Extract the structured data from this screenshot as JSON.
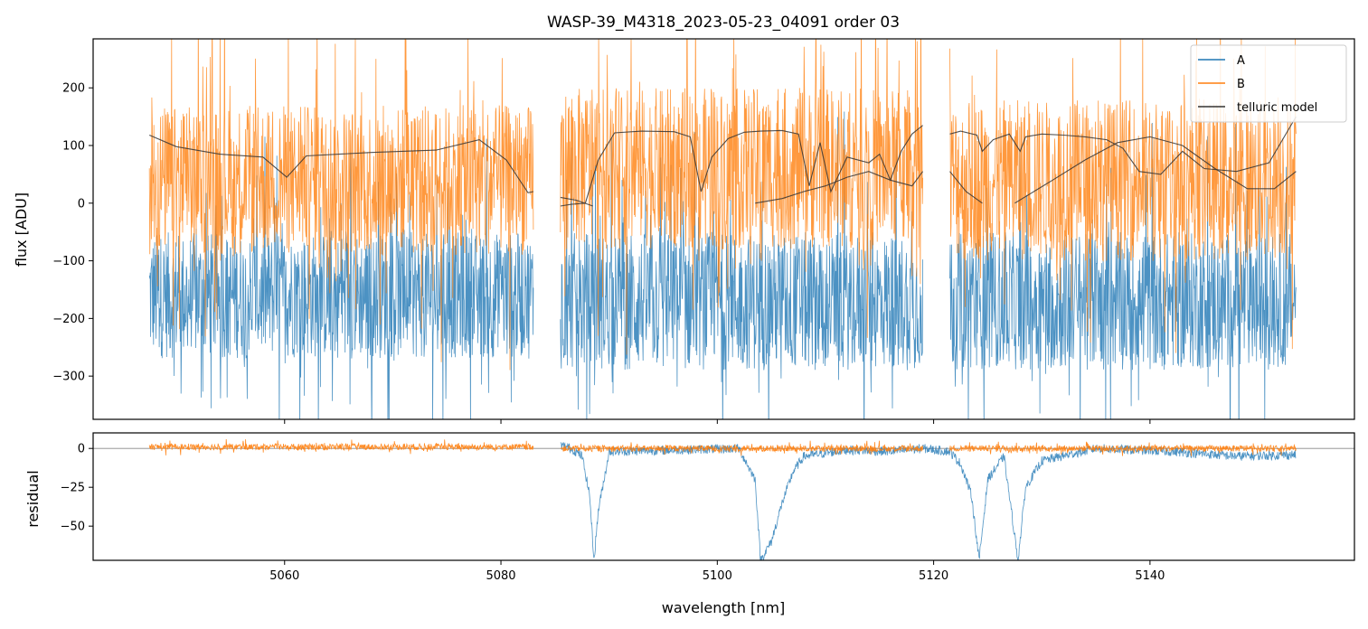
{
  "chart_data": {
    "type": "line",
    "title": "WASP-39_M4318_2023-05-23_04091  order 03",
    "xlabel": "wavelength [nm]",
    "xlim": [
      5042.3,
      5158.9
    ],
    "xticks": [
      5060,
      5080,
      5100,
      5120,
      5140
    ],
    "xtick_labels": [
      "5060",
      "5080",
      "5100",
      "5120",
      "5140"
    ],
    "panels": [
      {
        "name": "flux",
        "ylabel": "flux [ADU]",
        "ylim": [
          -375,
          285
        ],
        "yticks": [
          -300,
          -200,
          -100,
          0,
          100,
          200
        ],
        "ytick_labels": [
          "−300",
          "−200",
          "−100",
          "0",
          "100",
          "200"
        ],
        "legend_position": "top-right",
        "series": [
          {
            "name": "A",
            "color": "#1f77b4",
            "segments": [
              {
                "x": [
                  5047.5,
                  5060,
                  5060.4,
                  5083
                ],
                "center": -160,
                "spread": 110
              },
              {
                "x": [
                  5085.5,
                  5088,
                  5091,
                  5097,
                  5101,
                  5104,
                  5107,
                  5111,
                  5114,
                  5119
                ],
                "center": -170,
                "spread": 120
              },
              {
                "x": [
                  5121.5,
                  5126,
                  5131,
                  5136,
                  5139,
                  5142,
                  5145,
                  5150,
                  5153.5
                ],
                "center": -170,
                "spread": 120
              }
            ],
            "note": "dense noisy spectrum; upper excursions near 5104-5110 and 5136-5146"
          },
          {
            "name": "B",
            "color": "#ff7f0e",
            "segments": [
              {
                "x": [
                  5047.5,
                  5083
                ],
                "center": 40,
                "spread": 130
              },
              {
                "x": [
                  5085.5,
                  5119
                ],
                "center": 60,
                "spread": 140
              },
              {
                "x": [
                  5121.5,
                  5153.5
                ],
                "center": 40,
                "spread": 140
              }
            ],
            "note": "dense noisy spectrum; deep dips near 5113-5116 and 5136-5142"
          },
          {
            "name": "telluric model",
            "color": "#333333",
            "segments": [
              {
                "x": [
                  5047.5,
                  5050,
                  5054,
                  5058,
                  5060.2,
                  5062,
                  5068,
                  5074,
                  5078,
                  5080.5,
                  5082.5,
                  5083
                ],
                "y": [
                  118,
                  98,
                  85,
                  80,
                  45,
                  82,
                  88,
                  92,
                  110,
                  75,
                  18,
                  20
                ]
              },
              {
                "x": [
                  5085.5,
                  5086.5,
                  5087.8,
                  5089,
                  5090.5,
                  5093,
                  5096,
                  5097.5,
                  5098.5,
                  5099.5,
                  5101,
                  5102.5,
                  5104,
                  5106,
                  5107.5,
                  5108.5,
                  5109.5,
                  5110.5,
                  5112,
                  5114,
                  5115,
                  5116,
                  5117,
                  5118,
                  5119
                ],
                "y": [
                  -5,
                  -2,
                  0,
                  75,
                  122,
                  125,
                  124,
                  115,
                  20,
                  80,
                  112,
                  123,
                  125,
                  126,
                  120,
                  30,
                  105,
                  20,
                  80,
                  70,
                  85,
                  40,
                  90,
                  120,
                  135
                ]
              },
              {
                "x": [
                  5085.5,
                  5087,
                  5088.5
                ],
                "y": [
                  10,
                  5,
                  -5
                ]
              },
              {
                "x": [
                  5103.5,
                  5106,
                  5108,
                  5110,
                  5112,
                  5114,
                  5116,
                  5118,
                  5119
                ],
                "y": [
                  0,
                  8,
                  20,
                  30,
                  45,
                  55,
                  40,
                  30,
                  55
                ]
              },
              {
                "x": [
                  5121.5,
                  5122.5,
                  5124,
                  5124.5,
                  5125.5,
                  5127,
                  5128,
                  5128.5,
                  5130,
                  5132,
                  5134,
                  5136,
                  5137.5,
                  5139,
                  5141,
                  5143,
                  5145,
                  5148,
                  5151,
                  5153.5
                ],
                "y": [
                  120,
                  125,
                  118,
                  90,
                  110,
                  120,
                  90,
                  115,
                  120,
                  118,
                  115,
                  110,
                  95,
                  55,
                  50,
                  90,
                  60,
                  55,
                  70,
                  150
                ]
              },
              {
                "x": [
                  5121.5,
                  5123,
                  5124.5
                ],
                "y": [
                  55,
                  20,
                  0
                ]
              },
              {
                "x": [
                  5127.5,
                  5131,
                  5134,
                  5137,
                  5140,
                  5143,
                  5146,
                  5149,
                  5151.5,
                  5153.5
                ],
                "y": [
                  0,
                  40,
                  75,
                  105,
                  115,
                  100,
                  60,
                  25,
                  25,
                  55
                ]
              }
            ]
          }
        ]
      },
      {
        "name": "residual",
        "ylabel": "residual",
        "ylim": [
          -72,
          10
        ],
        "yticks": [
          -50,
          -25,
          0
        ],
        "ytick_labels": [
          "−50",
          "−25",
          "0"
        ],
        "hline": 0,
        "series": [
          {
            "name": "A",
            "color": "#1f77b4",
            "points": [
              {
                "x": 5085.5,
                "y": 2
              },
              {
                "x": 5086.5,
                "y": 0
              },
              {
                "x": 5087.5,
                "y": -5
              },
              {
                "x": 5088.2,
                "y": -30
              },
              {
                "x": 5088.6,
                "y": -72
              },
              {
                "x": 5089,
                "y": -40
              },
              {
                "x": 5090,
                "y": -2
              },
              {
                "x": 5102,
                "y": 0
              },
              {
                "x": 5103.5,
                "y": -20
              },
              {
                "x": 5104,
                "y": -72
              },
              {
                "x": 5105,
                "y": -60
              },
              {
                "x": 5106,
                "y": -35
              },
              {
                "x": 5107,
                "y": -15
              },
              {
                "x": 5108,
                "y": -5
              },
              {
                "x": 5110,
                "y": -3
              },
              {
                "x": 5112,
                "y": -1
              },
              {
                "x": 5116,
                "y": -2
              },
              {
                "x": 5119,
                "y": 0
              },
              {
                "x": 5121.5,
                "y": -2
              },
              {
                "x": 5122.5,
                "y": -10
              },
              {
                "x": 5123.5,
                "y": -30
              },
              {
                "x": 5124.2,
                "y": -72
              },
              {
                "x": 5125,
                "y": -20
              },
              {
                "x": 5126.5,
                "y": -5
              },
              {
                "x": 5127.8,
                "y": -72
              },
              {
                "x": 5128.5,
                "y": -25
              },
              {
                "x": 5130,
                "y": -8
              },
              {
                "x": 5135,
                "y": 0
              },
              {
                "x": 5142,
                "y": -2
              },
              {
                "x": 5148,
                "y": -5
              },
              {
                "x": 5153.5,
                "y": -4
              }
            ],
            "note": "mostly near zero with deep absorption residuals near 5088.6, 5104, 5124.2, 5127.8"
          },
          {
            "name": "B",
            "color": "#ff7f0e",
            "segments": [
              {
                "x": [
                  5047.5,
                  5083
                ],
                "center": 1,
                "spread": 2
              },
              {
                "x": [
                  5085.5,
                  5119
                ],
                "center": 0,
                "spread": 2
              },
              {
                "x": [
                  5121.5,
                  5153.5
                ],
                "center": 0,
                "spread": 2
              }
            ]
          }
        ]
      }
    ],
    "legend": [
      "A",
      "B",
      "telluric model"
    ]
  }
}
